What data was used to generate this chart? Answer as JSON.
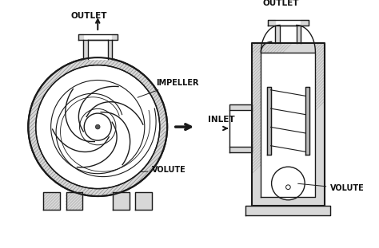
{
  "bg_color": "#ffffff",
  "line_color": "#1a1a1a",
  "hatch_gray": "#aaaaaa",
  "text_color": "#111111",
  "labels": {
    "outlet_left": "OUTLET",
    "outlet_right": "OUTLET",
    "impeller": "IMPELLER",
    "inlet": "INLET",
    "volute": "VOLUTE"
  },
  "figsize": [
    4.74,
    3.11
  ],
  "dpi": 100
}
